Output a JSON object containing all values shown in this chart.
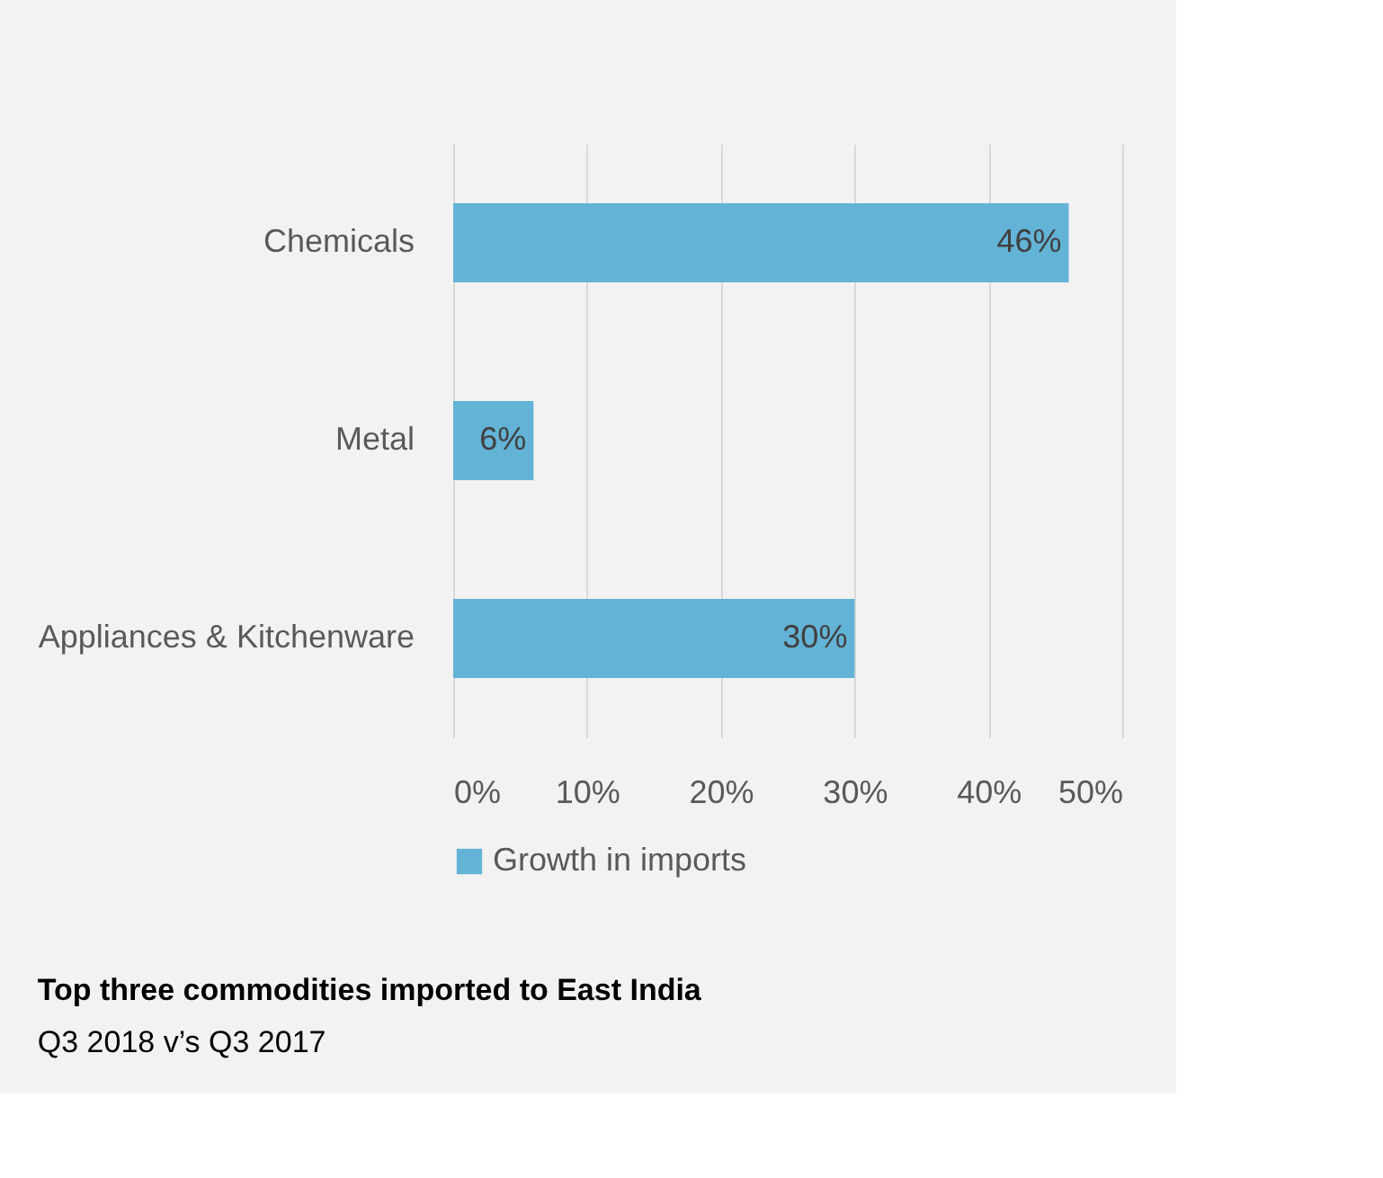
{
  "chart_data": {
    "type": "bar",
    "orientation": "horizontal",
    "title": "Top three commodities imported to East India",
    "annotations": [
      "Q3 2018 v’s Q3 2017"
    ],
    "categories": [
      "Chemicals",
      "Metal",
      "Appliances & Kitchenware"
    ],
    "series": [
      {
        "name": "Growth in imports",
        "color": "#63b3d6",
        "values": [
          46,
          6,
          30
        ],
        "value_labels": [
          "46%",
          "6%",
          "30%"
        ]
      }
    ],
    "xlim": [
      0,
      50
    ],
    "xticks": [
      {
        "value": 0,
        "label": "0%"
      },
      {
        "value": 10,
        "label": "10%"
      },
      {
        "value": 20,
        "label": "20%"
      },
      {
        "value": 30,
        "label": "30%"
      },
      {
        "value": 40,
        "label": "40%"
      },
      {
        "value": 50,
        "label": "50%"
      }
    ],
    "grid": "x",
    "legend": "bottom"
  }
}
